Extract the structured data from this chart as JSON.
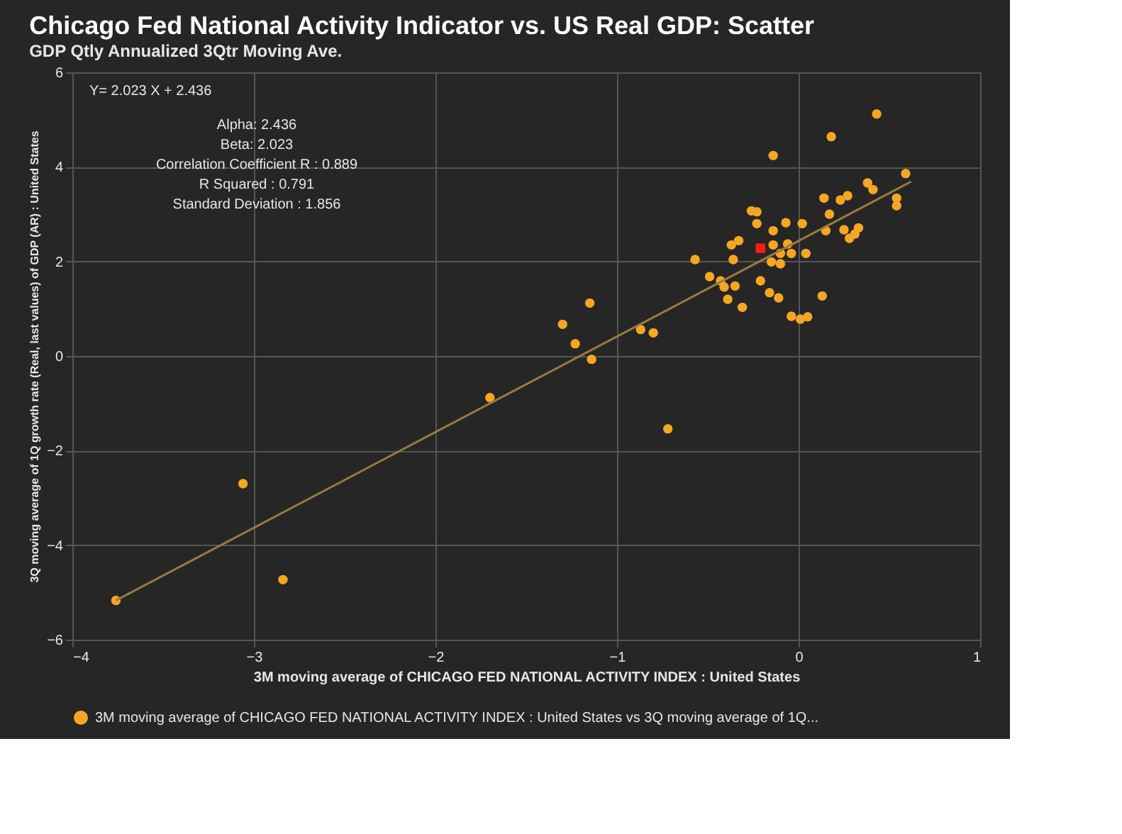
{
  "chart_data": {
    "type": "scatter",
    "title": "Chicago Fed National Activity Indicator vs. US Real GDP: Scatter",
    "subtitle": "GDP Qtly Annualized 3Qtr Moving Ave.",
    "xlabel": "3M moving average of CHICAGO FED NATIONAL ACTIVITY INDEX : United States",
    "ylabel": "3Q moving average of 1Q growth rate (Real, last values) of GDP (AR) : United States",
    "annotations": [
      "Y= 2.023 X + 2.436",
      "Alpha: 2.436",
      "Beta: 2.023",
      "Correlation Coefficient R : 0.889",
      "R Squared : 0.791",
      "Standard Deviation : 1.856"
    ],
    "xlim": [
      -4,
      1
    ],
    "xticks": [
      -4,
      -3,
      -2,
      -1,
      0,
      1
    ],
    "ylim": [
      -6,
      6
    ],
    "yticks": [
      -6,
      -4,
      -2,
      0,
      2,
      4,
      6
    ],
    "grid": true,
    "legend": "bottom",
    "marker": "circle",
    "series": [
      {
        "name": "3M moving average of CHICAGO FED NATIONAL ACTIVITY INDEX : United States vs 3Q moving average of 1Q...",
        "color": "#f5a623",
        "x": [
          0.43,
          0.18,
          -0.14,
          0.59,
          0.38,
          0.41,
          0.14,
          0.23,
          0.27,
          0.54,
          0.54,
          -0.26,
          -0.23,
          0.17,
          -0.23,
          -0.07,
          0.02,
          -0.14,
          0.15,
          0.25,
          0.33,
          0.31,
          0.28,
          -0.33,
          -0.37,
          -0.14,
          -0.06,
          -0.1,
          -0.04,
          0.04,
          -0.15,
          -0.1,
          -0.57,
          -0.36,
          -0.49,
          -0.43,
          -0.41,
          -0.35,
          -0.21,
          -0.16,
          -0.11,
          -0.39,
          -0.31,
          0.13,
          -0.04,
          0.01,
          0.05,
          -1.15,
          -1.3,
          -1.23,
          -0.87,
          -0.8,
          -1.14,
          -0.72,
          -1.7,
          -3.06,
          -2.84,
          -3.76
        ],
        "values": [
          5.12,
          4.64,
          4.24,
          3.86,
          3.66,
          3.52,
          3.34,
          3.3,
          3.39,
          3.34,
          3.18,
          3.07,
          3.05,
          3.0,
          2.8,
          2.82,
          2.8,
          2.65,
          2.65,
          2.67,
          2.71,
          2.58,
          2.49,
          2.44,
          2.35,
          2.35,
          2.37,
          2.17,
          2.17,
          2.17,
          1.99,
          1.95,
          2.04,
          2.04,
          1.68,
          1.59,
          1.46,
          1.48,
          1.59,
          1.34,
          1.23,
          1.2,
          1.03,
          1.27,
          0.84,
          0.78,
          0.83,
          1.12,
          0.67,
          0.26,
          0.56,
          0.49,
          -0.07,
          -1.54,
          -0.88,
          -2.7,
          -4.73,
          -5.17
        ]
      },
      {
        "type": "line",
        "marker": "none",
        "color": "#9a7a3e",
        "x": [
          -3.76,
          0.62
        ],
        "values": [
          -5.17,
          3.69
        ]
      },
      {
        "type": "scatter",
        "marker": "square",
        "color": "#ff1a1a",
        "x": [
          -0.21
        ],
        "values": [
          2.28
        ]
      }
    ]
  }
}
